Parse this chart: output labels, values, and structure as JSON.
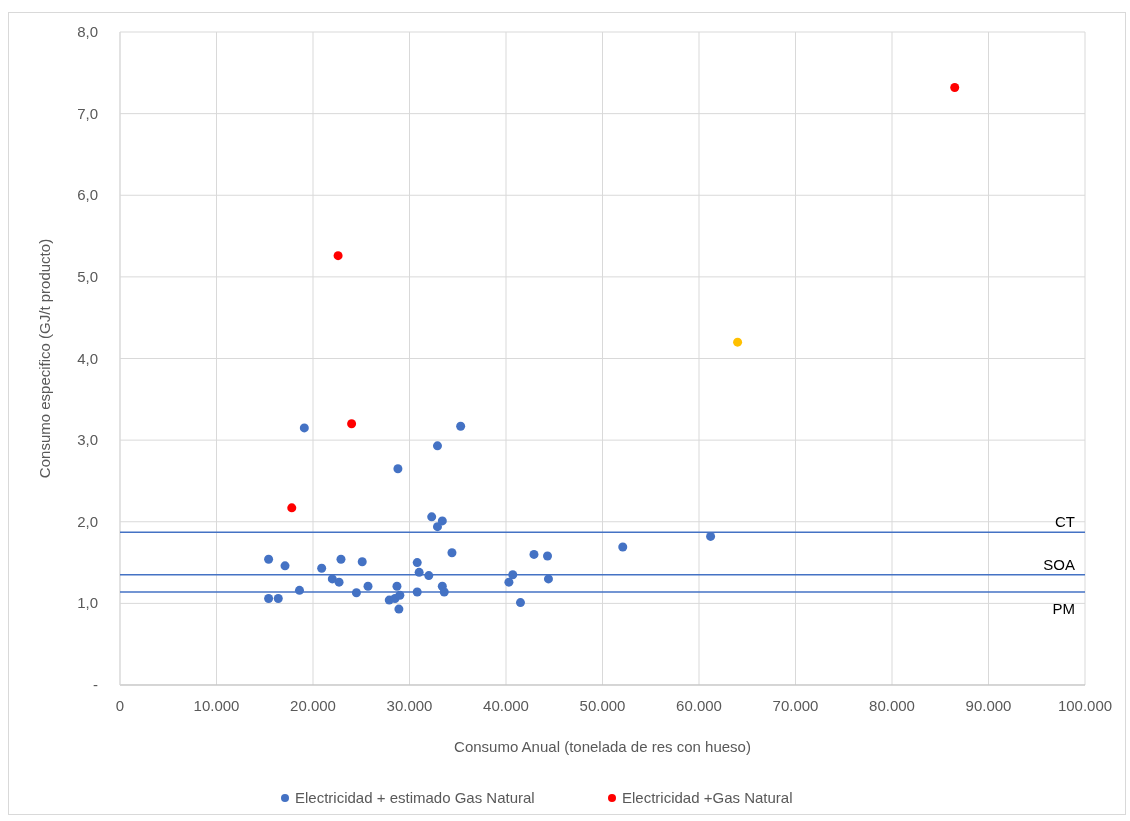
{
  "chart_data": {
    "type": "scatter",
    "xlabel": "Consumo Anual (tonelada de res con hueso)",
    "ylabel": "Consumo especifico (GJ/t producto)",
    "xlim": [
      0,
      100000
    ],
    "xticks": [
      0,
      {
        "value": 10000,
        "label": "10.000"
      },
      {
        "value": 20000,
        "label": "20.000"
      },
      {
        "value": 30000,
        "label": "30.000"
      },
      {
        "value": 40000,
        "label": "40.000"
      },
      {
        "value": 50000,
        "label": "50.000"
      },
      {
        "value": 60000,
        "label": "60.000"
      },
      {
        "value": 70000,
        "label": "70.000"
      },
      {
        "value": 80000,
        "label": "80.000"
      },
      {
        "value": 90000,
        "label": "90.000"
      },
      {
        "value": 100000,
        "label": "100.000"
      }
    ],
    "ylim": [
      0,
      8
    ],
    "yticks": [
      {
        "value": 0,
        "label": "-"
      },
      {
        "value": 1,
        "label": "1,0"
      },
      {
        "value": 2,
        "label": "2,0"
      },
      {
        "value": 3,
        "label": "3,0"
      },
      {
        "value": 4,
        "label": "4,0"
      },
      {
        "value": 5,
        "label": "5,0"
      },
      {
        "value": 6,
        "label": "6,0"
      },
      {
        "value": 7,
        "label": "7,0"
      },
      {
        "value": 8,
        "label": "8,0"
      }
    ],
    "grid": true,
    "legend": "bottom",
    "marker": "circle",
    "series": [
      {
        "name": "Electricidad + estimado Gas Natural",
        "color": "#4472c4",
        "x": [
          19100,
          35300,
          32900,
          28800,
          32300,
          33400,
          32900,
          34400,
          15400,
          17100,
          20900,
          22900,
          25100,
          22000,
          22700,
          25700,
          24500,
          18600,
          15400,
          16400,
          28700,
          27900,
          28500,
          29000,
          28900,
          30800,
          31000,
          32000,
          30800,
          33400,
          33600,
          40700,
          40300,
          41500,
          42900,
          44300,
          44400,
          52100,
          61200
        ],
        "values": [
          3.15,
          3.17,
          2.93,
          2.65,
          2.06,
          2.01,
          1.94,
          1.62,
          1.54,
          1.46,
          1.43,
          1.54,
          1.51,
          1.3,
          1.26,
          1.21,
          1.13,
          1.16,
          1.06,
          1.06,
          1.21,
          1.04,
          1.06,
          1.1,
          0.93,
          1.5,
          1.38,
          1.34,
          1.14,
          1.21,
          1.14,
          1.35,
          1.26,
          1.01,
          1.6,
          1.58,
          1.3,
          1.69,
          1.82
        ]
      },
      {
        "name": "Electricidad +Gas Natural",
        "color": "#ff0000",
        "x": [
          22600,
          24000,
          17800,
          86500
        ],
        "values": [
          5.26,
          3.2,
          2.17,
          7.32
        ]
      },
      {
        "color": "#ffc000",
        "x": [
          64000
        ],
        "values": [
          4.2
        ]
      }
    ],
    "ref_lines": [
      {
        "axis": "y",
        "value": 1.87,
        "label": "CT",
        "color": "#4472c4"
      },
      {
        "axis": "y",
        "value": 1.35,
        "label": "SOA",
        "color": "#4472c4"
      },
      {
        "axis": "y",
        "value": 1.14,
        "label": "PM",
        "color": "#4472c4"
      }
    ]
  }
}
